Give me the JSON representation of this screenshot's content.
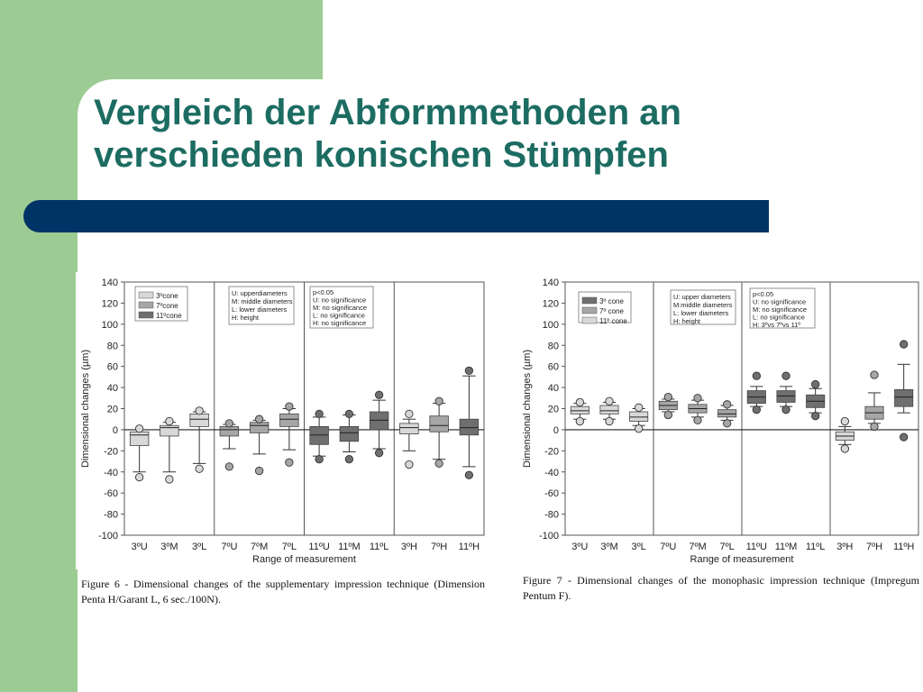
{
  "slide": {
    "title_line1": "Vergleich der Abformmethoden an",
    "title_line2": "verschieden konischen Stümpfen",
    "colors": {
      "green": "#9dcb94",
      "title": "#1c6c62",
      "bar": "#003366"
    }
  },
  "chart_data": [
    {
      "type": "box",
      "ylabel": "Dimensional changes (µm)",
      "xlabel": "Range of measurement",
      "ylim": [
        -100,
        140
      ],
      "yticks": [
        140,
        120,
        100,
        80,
        60,
        40,
        20,
        0,
        -20,
        -40,
        -60,
        -80,
        -100
      ],
      "categories": [
        "3ºU",
        "3ºM",
        "3ºL",
        "7ºU",
        "7ºM",
        "7ºL",
        "11ºU",
        "11ºM",
        "11ºL",
        "3ºH",
        "7ºH",
        "11ºH"
      ],
      "groups": [
        {
          "name": "3º cone",
          "color": "#d8d8d8"
        },
        {
          "name": "7º cone",
          "color": "#a6a6a6"
        },
        {
          "name": "11º cone",
          "color": "#6f6f6f"
        }
      ],
      "legend_cones": [
        "3ºcone",
        "7ºcone",
        "11ºcone"
      ],
      "legend_meaning": [
        "U: upperdiameters",
        "M: middle diameters",
        "L: lower diameters",
        "H: height"
      ],
      "legend_significance": [
        "p<0.05",
        "U: no significance",
        "M: no significance",
        "L: no significance",
        "H: no significance"
      ],
      "boxes": [
        {
          "category": "3ºU",
          "group": 0,
          "min": -40,
          "q1": -15,
          "median": -5,
          "q3": -2,
          "max": 0,
          "outliers": [
            -45,
            1
          ]
        },
        {
          "category": "3ºM",
          "group": 0,
          "min": -40,
          "q1": -6,
          "median": 2,
          "q3": 4,
          "max": 7,
          "outliers": [
            -47,
            8
          ]
        },
        {
          "category": "3ºL",
          "group": 0,
          "min": -32,
          "q1": 3,
          "median": 10,
          "q3": 15,
          "max": 17,
          "outliers": [
            -37,
            18
          ]
        },
        {
          "category": "7ºU",
          "group": 1,
          "min": -18,
          "q1": -6,
          "median": 0,
          "q3": 3,
          "max": 5,
          "outliers": [
            -35,
            6
          ]
        },
        {
          "category": "7ºM",
          "group": 1,
          "min": -23,
          "q1": -3,
          "median": 4,
          "q3": 7,
          "max": 9,
          "outliers": [
            -39,
            10
          ]
        },
        {
          "category": "7ºL",
          "group": 1,
          "min": -19,
          "q1": 3,
          "median": 10,
          "q3": 15,
          "max": 20,
          "outliers": [
            -31,
            22
          ]
        },
        {
          "category": "11ºU",
          "group": 2,
          "min": -25,
          "q1": -14,
          "median": -5,
          "q3": 3,
          "max": 12,
          "outliers": [
            -28,
            15
          ]
        },
        {
          "category": "11ºM",
          "group": 2,
          "min": -21,
          "q1": -11,
          "median": -3,
          "q3": 3,
          "max": 14,
          "outliers": [
            -28,
            15
          ]
        },
        {
          "category": "11ºL",
          "group": 2,
          "min": -18,
          "q1": 0,
          "median": 9,
          "q3": 17,
          "max": 28,
          "outliers": [
            -22,
            33
          ]
        },
        {
          "category": "3ºH",
          "group": 0,
          "min": -20,
          "q1": -4,
          "median": 2,
          "q3": 6,
          "max": 10,
          "outliers": [
            -33,
            15
          ]
        },
        {
          "category": "7ºH",
          "group": 1,
          "min": -28,
          "q1": -2,
          "median": 4,
          "q3": 13,
          "max": 25,
          "outliers": [
            -32,
            27
          ]
        },
        {
          "category": "11ºH",
          "group": 2,
          "min": -35,
          "q1": -5,
          "median": 2,
          "q3": 10,
          "max": 51,
          "outliers": [
            -43,
            56
          ]
        }
      ],
      "caption": "Figure 6 - Dimensional changes of the supplementary impression technique (Dimension Penta H/Garant L, 6 sec./100N)."
    },
    {
      "type": "box",
      "ylabel": "Dimensional changes (µm)",
      "xlabel": "Range of measurement",
      "ylim": [
        -100,
        140
      ],
      "yticks": [
        140,
        120,
        100,
        80,
        60,
        40,
        20,
        0,
        -20,
        -40,
        -60,
        -80,
        -100
      ],
      "categories": [
        "3ºU",
        "3ºM",
        "3ºL",
        "7ºU",
        "7ºM",
        "7ºL",
        "11ºU",
        "11ºM",
        "11ºL",
        "3ºH",
        "7ºH",
        "11ºH"
      ],
      "groups": [
        {
          "name": "3º cone",
          "color": "#6f6f6f"
        },
        {
          "name": "7º cone",
          "color": "#a6a6a6"
        },
        {
          "name": "11º cone",
          "color": "#d8d8d8"
        }
      ],
      "legend_cones": [
        "3º cone",
        "7º cone",
        "11º cone"
      ],
      "legend_meaning": [
        "U: upper diameters",
        "M:middle diameters",
        "L: lower diameters",
        "H: height"
      ],
      "legend_significance": [
        "p<0.05",
        "U: no significance",
        "M: no significance",
        "L: no significance",
        "H: 3ºvs 7ºvs 11º"
      ],
      "boxes": [
        {
          "category": "3ºU",
          "group": 2,
          "min": 10,
          "q1": 15,
          "median": 18,
          "q3": 22,
          "max": 25,
          "outliers": [
            8,
            26
          ]
        },
        {
          "category": "3ºM",
          "group": 2,
          "min": 10,
          "q1": 15,
          "median": 18,
          "q3": 23,
          "max": 26,
          "outliers": [
            8,
            27
          ]
        },
        {
          "category": "3ºL",
          "group": 2,
          "min": 4,
          "q1": 8,
          "median": 12,
          "q3": 17,
          "max": 20,
          "outliers": [
            1,
            21
          ]
        },
        {
          "category": "7ºU",
          "group": 1,
          "min": 17,
          "q1": 19,
          "median": 23,
          "q3": 27,
          "max": 29,
          "outliers": [
            14,
            31
          ]
        },
        {
          "category": "7ºM",
          "group": 1,
          "min": 12,
          "q1": 16,
          "median": 20,
          "q3": 24,
          "max": 28,
          "outliers": [
            9,
            30
          ]
        },
        {
          "category": "7ºL",
          "group": 1,
          "min": 9,
          "q1": 12,
          "median": 15,
          "q3": 19,
          "max": 23,
          "outliers": [
            6,
            24
          ]
        },
        {
          "category": "11ºU",
          "group": 0,
          "min": 22,
          "q1": 25,
          "median": 31,
          "q3": 37,
          "max": 41,
          "outliers": [
            19,
            51
          ]
        },
        {
          "category": "11ºM",
          "group": 0,
          "min": 22,
          "q1": 26,
          "median": 32,
          "q3": 37,
          "max": 41,
          "outliers": [
            19,
            51
          ]
        },
        {
          "category": "11ºL",
          "group": 0,
          "min": 16,
          "q1": 21,
          "median": 27,
          "q3": 33,
          "max": 39,
          "outliers": [
            13,
            43
          ]
        },
        {
          "category": "3ºH",
          "group": 2,
          "min": -14,
          "q1": -10,
          "median": -6,
          "q3": -2,
          "max": 3,
          "outliers": [
            -18,
            8
          ]
        },
        {
          "category": "7ºH",
          "group": 1,
          "min": 6,
          "q1": 10,
          "median": 16,
          "q3": 22,
          "max": 35,
          "outliers": [
            3,
            52
          ]
        },
        {
          "category": "11ºH",
          "group": 0,
          "min": 16,
          "q1": 22,
          "median": 31,
          "q3": 38,
          "max": 62,
          "outliers": [
            -7,
            81
          ]
        }
      ],
      "caption": "Figure 7 - Dimensional changes of the monophasic impression technique (Impregum Pentum F)."
    }
  ]
}
